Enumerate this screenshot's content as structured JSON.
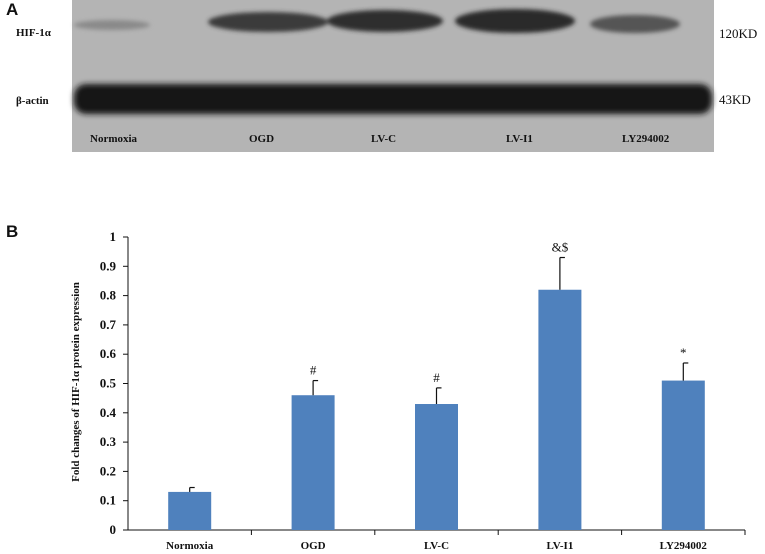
{
  "panel_a": {
    "letter": "A",
    "row_labels": [
      "HIF-1α",
      "β-actin"
    ],
    "size_labels": [
      "120KD",
      "43KD"
    ],
    "lane_labels": [
      "Normoxia",
      "OGD",
      "LV-C",
      "LV-I1",
      "LY294002"
    ]
  },
  "panel_b": {
    "letter": "B"
  },
  "chart_data": {
    "type": "bar",
    "categories": [
      "Normoxia",
      "OGD",
      "LV-C",
      "LV-I1",
      "LY294002"
    ],
    "values": [
      0.13,
      0.46,
      0.43,
      0.82,
      0.51
    ],
    "error": [
      0.015,
      0.05,
      0.055,
      0.11,
      0.06
    ],
    "annotations": [
      "",
      "#",
      "#",
      "&$",
      "*"
    ],
    "ylabel": "Fold changes of HIF-1α protein expression",
    "xlabel": "",
    "ylim": [
      0,
      1
    ],
    "yticks": [
      "0",
      "0.1",
      "0.2",
      "0.3",
      "0.4",
      "0.5",
      "0.6",
      "0.7",
      "0.8",
      "0.9",
      "1"
    ],
    "grid": false,
    "bar_color": "#4f81bd"
  }
}
